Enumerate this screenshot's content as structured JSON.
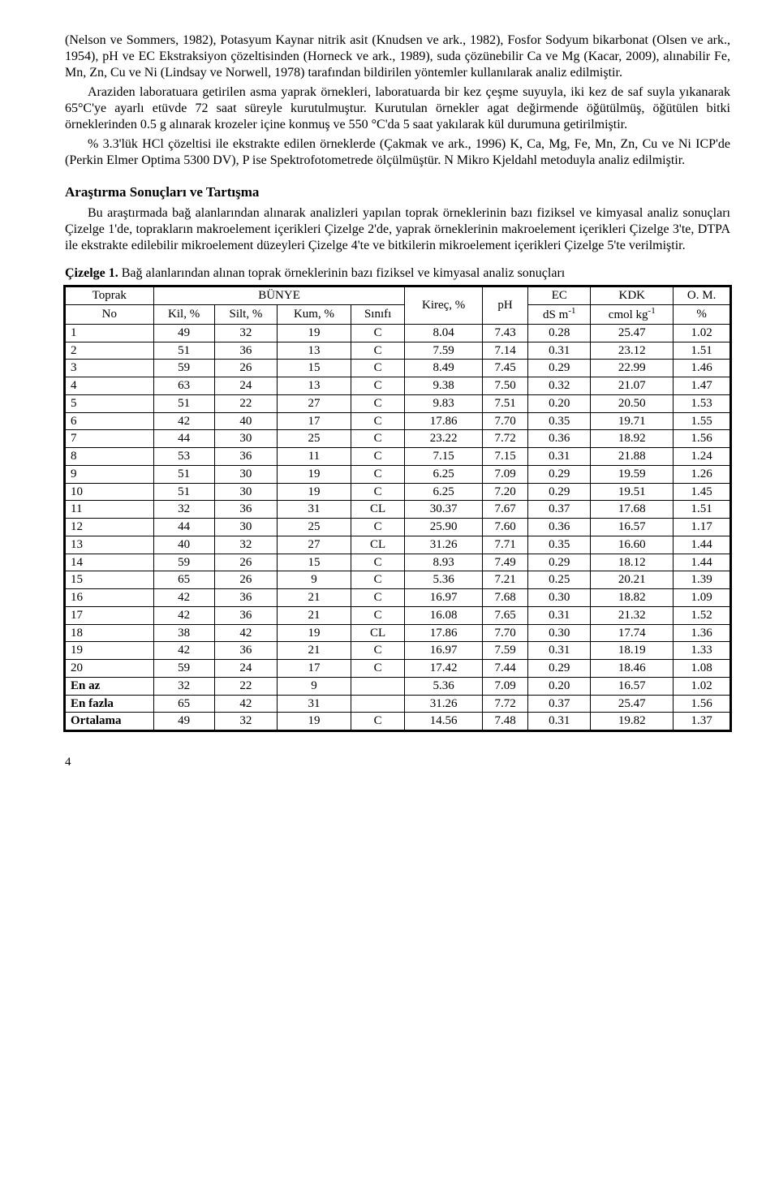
{
  "paragraphs": {
    "p1": "(Nelson ve Sommers, 1982), Potasyum Kaynar nitrik asit (Knudsen ve ark., 1982), Fosfor Sodyum bikarbonat (Olsen ve ark., 1954), pH ve EC Ekstraksiyon çözeltisinden (Horneck ve ark., 1989), suda çözünebilir Ca ve Mg (Kacar, 2009), alınabilir Fe, Mn, Zn, Cu ve Ni (Lindsay ve Norwell, 1978) tarafından bildirilen yöntemler kullanılarak analiz edilmiştir.",
    "p2": "Araziden laboratuara getirilen asma yaprak örnekleri, laboratuarda bir kez çeşme suyuyla, iki kez de saf suyla yıkanarak 65°C'ye ayarlı etüvde 72 saat süreyle kurutulmuştur. Kurutulan örnekler agat değirmende öğütülmüş, öğütülen bitki örneklerinden 0.5 g alınarak krozeler içine konmuş ve 550 °C'da 5 saat yakılarak kül durumuna getirilmiştir.",
    "p3": "% 3.3'lük HCl çözeltisi ile ekstrakte edilen örneklerde (Çakmak ve ark., 1996) K, Ca, Mg, Fe, Mn, Zn, Cu ve Ni ICP'de (Perkin Elmer Optima 5300 DV), P ise Spektrofotometrede ölçülmüştür. N Mikro Kjeldahl metoduyla analiz edilmiştir.",
    "section": "Araştırma Sonuçları ve Tartışma",
    "p4": "Bu araştırmada bağ alanlarından alınarak analizleri yapılan toprak örneklerinin bazı fiziksel ve kimyasal analiz sonuçları Çizelge 1'de, toprakların makroelement içerikleri Çizelge 2'de, yaprak örneklerinin makroelement içerikleri Çizelge 3'te, DTPA ile ekstrakte edilebilir mikroelement düzeyleri Çizelge 4'te ve bitkilerin mikroelement içerikleri Çizelge 5'te verilmiştir."
  },
  "table": {
    "caption_bold": "Çizelge 1.",
    "caption_rest": " Bağ alanlarından alınan toprak örneklerinin bazı fiziksel ve kimyasal analiz sonuçları",
    "header_top": {
      "toprak": "Toprak",
      "no": "No",
      "bunye": "BÜNYE",
      "kil": "Kil, %",
      "silt": "Silt, %",
      "kum": "Kum, %",
      "sinifi": "Sınıfı",
      "kirec": "Kireç, %",
      "ph": "pH",
      "ec": "EC",
      "ec_unit": "dS m",
      "kdk": "KDK",
      "kdk_unit": "cmol kg",
      "om": "O. M.",
      "om_unit": "%"
    },
    "rows": [
      {
        "no": "1",
        "kil": "49",
        "silt": "32",
        "kum": "19",
        "sin": "C",
        "kirec": "8.04",
        "ph": "7.43",
        "ec": "0.28",
        "kdk": "25.47",
        "om": "1.02"
      },
      {
        "no": "2",
        "kil": "51",
        "silt": "36",
        "kum": "13",
        "sin": "C",
        "kirec": "7.59",
        "ph": "7.14",
        "ec": "0.31",
        "kdk": "23.12",
        "om": "1.51"
      },
      {
        "no": "3",
        "kil": "59",
        "silt": "26",
        "kum": "15",
        "sin": "C",
        "kirec": "8.49",
        "ph": "7.45",
        "ec": "0.29",
        "kdk": "22.99",
        "om": "1.46"
      },
      {
        "no": "4",
        "kil": "63",
        "silt": "24",
        "kum": "13",
        "sin": "C",
        "kirec": "9.38",
        "ph": "7.50",
        "ec": "0.32",
        "kdk": "21.07",
        "om": "1.47"
      },
      {
        "no": "5",
        "kil": "51",
        "silt": "22",
        "kum": "27",
        "sin": "C",
        "kirec": "9.83",
        "ph": "7.51",
        "ec": "0.20",
        "kdk": "20.50",
        "om": "1.53"
      },
      {
        "no": "6",
        "kil": "42",
        "silt": "40",
        "kum": "17",
        "sin": "C",
        "kirec": "17.86",
        "ph": "7.70",
        "ec": "0.35",
        "kdk": "19.71",
        "om": "1.55"
      },
      {
        "no": "7",
        "kil": "44",
        "silt": "30",
        "kum": "25",
        "sin": "C",
        "kirec": "23.22",
        "ph": "7.72",
        "ec": "0.36",
        "kdk": "18.92",
        "om": "1.56"
      },
      {
        "no": "8",
        "kil": "53",
        "silt": "36",
        "kum": "11",
        "sin": "C",
        "kirec": "7.15",
        "ph": "7.15",
        "ec": "0.31",
        "kdk": "21.88",
        "om": "1.24"
      },
      {
        "no": "9",
        "kil": "51",
        "silt": "30",
        "kum": "19",
        "sin": "C",
        "kirec": "6.25",
        "ph": "7.09",
        "ec": "0.29",
        "kdk": "19.59",
        "om": "1.26"
      },
      {
        "no": "10",
        "kil": "51",
        "silt": "30",
        "kum": "19",
        "sin": "C",
        "kirec": "6.25",
        "ph": "7.20",
        "ec": "0.29",
        "kdk": "19.51",
        "om": "1.45"
      },
      {
        "no": "11",
        "kil": "32",
        "silt": "36",
        "kum": "31",
        "sin": "CL",
        "kirec": "30.37",
        "ph": "7.67",
        "ec": "0.37",
        "kdk": "17.68",
        "om": "1.51"
      },
      {
        "no": "12",
        "kil": "44",
        "silt": "30",
        "kum": "25",
        "sin": "C",
        "kirec": "25.90",
        "ph": "7.60",
        "ec": "0.36",
        "kdk": "16.57",
        "om": "1.17"
      },
      {
        "no": "13",
        "kil": "40",
        "silt": "32",
        "kum": "27",
        "sin": "CL",
        "kirec": "31.26",
        "ph": "7.71",
        "ec": "0.35",
        "kdk": "16.60",
        "om": "1.44"
      },
      {
        "no": "14",
        "kil": "59",
        "silt": "26",
        "kum": "15",
        "sin": "C",
        "kirec": "8.93",
        "ph": "7.49",
        "ec": "0.29",
        "kdk": "18.12",
        "om": "1.44"
      },
      {
        "no": "15",
        "kil": "65",
        "silt": "26",
        "kum": "9",
        "sin": "C",
        "kirec": "5.36",
        "ph": "7.21",
        "ec": "0.25",
        "kdk": "20.21",
        "om": "1.39"
      },
      {
        "no": "16",
        "kil": "42",
        "silt": "36",
        "kum": "21",
        "sin": "C",
        "kirec": "16.97",
        "ph": "7.68",
        "ec": "0.30",
        "kdk": "18.82",
        "om": "1.09"
      },
      {
        "no": "17",
        "kil": "42",
        "silt": "36",
        "kum": "21",
        "sin": "C",
        "kirec": "16.08",
        "ph": "7.65",
        "ec": "0.31",
        "kdk": "21.32",
        "om": "1.52"
      },
      {
        "no": "18",
        "kil": "38",
        "silt": "42",
        "kum": "19",
        "sin": "CL",
        "kirec": "17.86",
        "ph": "7.70",
        "ec": "0.30",
        "kdk": "17.74",
        "om": "1.36"
      },
      {
        "no": "19",
        "kil": "42",
        "silt": "36",
        "kum": "21",
        "sin": "C",
        "kirec": "16.97",
        "ph": "7.59",
        "ec": "0.31",
        "kdk": "18.19",
        "om": "1.33"
      },
      {
        "no": "20",
        "kil": "59",
        "silt": "24",
        "kum": "17",
        "sin": "C",
        "kirec": "17.42",
        "ph": "7.44",
        "ec": "0.29",
        "kdk": "18.46",
        "om": "1.08"
      }
    ],
    "summary": [
      {
        "label": "En az",
        "kil": "32",
        "silt": "22",
        "kum": "9",
        "sin": "",
        "kirec": "5.36",
        "ph": "7.09",
        "ec": "0.20",
        "kdk": "16.57",
        "om": "1.02"
      },
      {
        "label": "En fazla",
        "kil": "65",
        "silt": "42",
        "kum": "31",
        "sin": "",
        "kirec": "31.26",
        "ph": "7.72",
        "ec": "0.37",
        "kdk": "25.47",
        "om": "1.56"
      },
      {
        "label": "Ortalama",
        "kil": "49",
        "silt": "32",
        "kum": "19",
        "sin": "C",
        "kirec": "14.56",
        "ph": "7.48",
        "ec": "0.31",
        "kdk": "19.82",
        "om": "1.37"
      }
    ]
  },
  "page_number": "4"
}
